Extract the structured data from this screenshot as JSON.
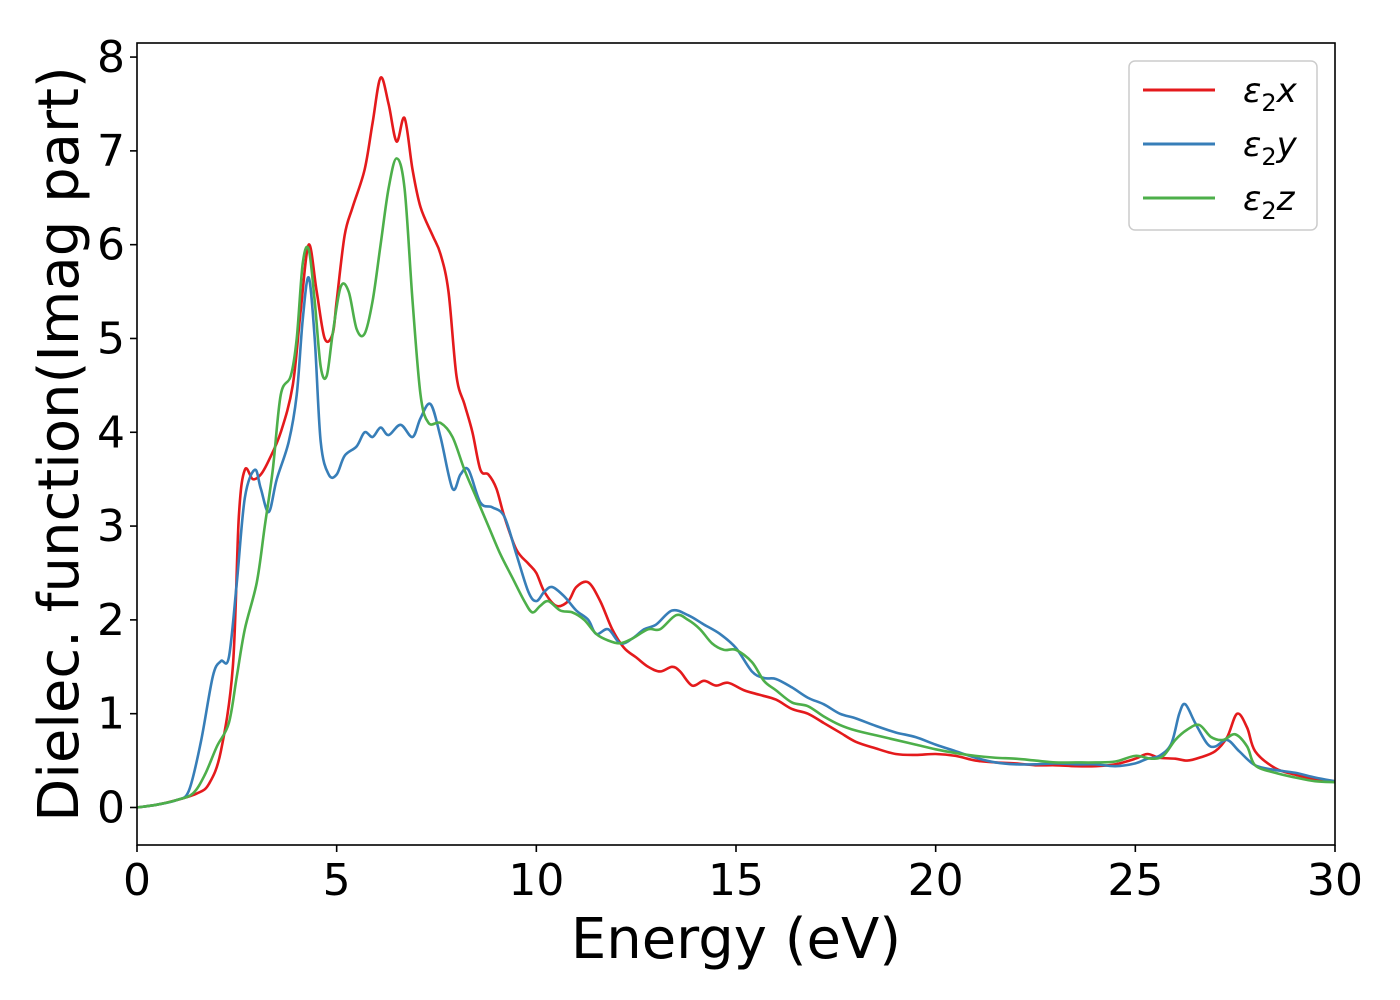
{
  "chart_data": {
    "type": "line",
    "title": "",
    "xlabel": "Energy (eV)",
    "ylabel": "Dielec. function(Imag part)",
    "xlim": [
      0,
      30
    ],
    "ylim": [
      -0.4,
      8.15
    ],
    "xticks": [
      0,
      5,
      10,
      15,
      20,
      25,
      30
    ],
    "yticks": [
      0,
      1,
      2,
      3,
      4,
      5,
      6,
      7,
      8
    ],
    "grid": false,
    "legend_position": "top-right",
    "series": [
      {
        "name": "ε2x",
        "legend_base": "ε",
        "legend_sub": "2",
        "legend_tail": "x",
        "color": "#e41a1c",
        "points": [
          [
            0,
            0
          ],
          [
            0.5,
            0.03
          ],
          [
            1.0,
            0.08
          ],
          [
            1.5,
            0.15
          ],
          [
            1.8,
            0.25
          ],
          [
            2.1,
            0.6
          ],
          [
            2.4,
            1.5
          ],
          [
            2.55,
            3.1
          ],
          [
            2.7,
            3.6
          ],
          [
            2.9,
            3.5
          ],
          [
            3.1,
            3.55
          ],
          [
            3.3,
            3.7
          ],
          [
            3.6,
            4.0
          ],
          [
            3.9,
            4.5
          ],
          [
            4.1,
            5.3
          ],
          [
            4.3,
            6.0
          ],
          [
            4.5,
            5.5
          ],
          [
            4.7,
            5.0
          ],
          [
            4.9,
            5.05
          ],
          [
            5.0,
            5.4
          ],
          [
            5.2,
            6.1
          ],
          [
            5.4,
            6.4
          ],
          [
            5.7,
            6.8
          ],
          [
            5.9,
            7.3
          ],
          [
            6.1,
            7.78
          ],
          [
            6.3,
            7.5
          ],
          [
            6.5,
            7.1
          ],
          [
            6.7,
            7.35
          ],
          [
            6.9,
            6.8
          ],
          [
            7.1,
            6.4
          ],
          [
            7.4,
            6.1
          ],
          [
            7.6,
            5.9
          ],
          [
            7.8,
            5.5
          ],
          [
            8.0,
            4.6
          ],
          [
            8.2,
            4.3
          ],
          [
            8.4,
            4.0
          ],
          [
            8.6,
            3.6
          ],
          [
            8.8,
            3.55
          ],
          [
            9.0,
            3.4
          ],
          [
            9.2,
            3.1
          ],
          [
            9.5,
            2.75
          ],
          [
            9.8,
            2.6
          ],
          [
            10.0,
            2.5
          ],
          [
            10.2,
            2.3
          ],
          [
            10.5,
            2.15
          ],
          [
            10.8,
            2.2
          ],
          [
            11.0,
            2.35
          ],
          [
            11.3,
            2.4
          ],
          [
            11.6,
            2.2
          ],
          [
            11.9,
            1.9
          ],
          [
            12.2,
            1.7
          ],
          [
            12.5,
            1.6
          ],
          [
            12.8,
            1.5
          ],
          [
            13.1,
            1.45
          ],
          [
            13.4,
            1.5
          ],
          [
            13.6,
            1.45
          ],
          [
            13.9,
            1.3
          ],
          [
            14.2,
            1.35
          ],
          [
            14.5,
            1.3
          ],
          [
            14.8,
            1.33
          ],
          [
            15.2,
            1.25
          ],
          [
            15.6,
            1.2
          ],
          [
            16.0,
            1.15
          ],
          [
            16.4,
            1.05
          ],
          [
            16.8,
            1.0
          ],
          [
            17.2,
            0.9
          ],
          [
            17.6,
            0.8
          ],
          [
            18.0,
            0.7
          ],
          [
            18.5,
            0.63
          ],
          [
            19.0,
            0.57
          ],
          [
            19.5,
            0.56
          ],
          [
            20.0,
            0.57
          ],
          [
            20.5,
            0.55
          ],
          [
            21.0,
            0.5
          ],
          [
            21.5,
            0.48
          ],
          [
            22.0,
            0.47
          ],
          [
            22.5,
            0.45
          ],
          [
            23.0,
            0.45
          ],
          [
            23.5,
            0.44
          ],
          [
            24.0,
            0.44
          ],
          [
            24.5,
            0.46
          ],
          [
            25.0,
            0.52
          ],
          [
            25.3,
            0.57
          ],
          [
            25.6,
            0.53
          ],
          [
            26.0,
            0.52
          ],
          [
            26.3,
            0.5
          ],
          [
            26.6,
            0.53
          ],
          [
            27.0,
            0.6
          ],
          [
            27.3,
            0.75
          ],
          [
            27.55,
            1.0
          ],
          [
            27.8,
            0.85
          ],
          [
            28.0,
            0.6
          ],
          [
            28.5,
            0.42
          ],
          [
            29.0,
            0.35
          ],
          [
            29.5,
            0.3
          ],
          [
            30.0,
            0.28
          ]
        ]
      },
      {
        "name": "ε2y",
        "legend_base": "ε",
        "legend_sub": "2",
        "legend_tail": "y",
        "color": "#377eb8",
        "points": [
          [
            0,
            0
          ],
          [
            0.5,
            0.03
          ],
          [
            1.0,
            0.08
          ],
          [
            1.3,
            0.18
          ],
          [
            1.6,
            0.7
          ],
          [
            1.9,
            1.4
          ],
          [
            2.1,
            1.56
          ],
          [
            2.3,
            1.6
          ],
          [
            2.5,
            2.4
          ],
          [
            2.7,
            3.3
          ],
          [
            2.95,
            3.6
          ],
          [
            3.1,
            3.4
          ],
          [
            3.3,
            3.15
          ],
          [
            3.5,
            3.5
          ],
          [
            3.8,
            3.9
          ],
          [
            4.0,
            4.4
          ],
          [
            4.15,
            5.2
          ],
          [
            4.3,
            5.65
          ],
          [
            4.45,
            5.0
          ],
          [
            4.6,
            3.9
          ],
          [
            4.8,
            3.55
          ],
          [
            5.0,
            3.55
          ],
          [
            5.2,
            3.75
          ],
          [
            5.5,
            3.85
          ],
          [
            5.7,
            4.0
          ],
          [
            5.9,
            3.95
          ],
          [
            6.1,
            4.05
          ],
          [
            6.3,
            3.97
          ],
          [
            6.6,
            4.08
          ],
          [
            6.9,
            3.95
          ],
          [
            7.1,
            4.15
          ],
          [
            7.35,
            4.3
          ],
          [
            7.6,
            3.95
          ],
          [
            7.9,
            3.4
          ],
          [
            8.1,
            3.55
          ],
          [
            8.3,
            3.6
          ],
          [
            8.6,
            3.25
          ],
          [
            8.9,
            3.2
          ],
          [
            9.2,
            3.1
          ],
          [
            9.5,
            2.7
          ],
          [
            9.8,
            2.3
          ],
          [
            10.0,
            2.2
          ],
          [
            10.2,
            2.3
          ],
          [
            10.4,
            2.35
          ],
          [
            10.7,
            2.25
          ],
          [
            11.0,
            2.1
          ],
          [
            11.3,
            2.0
          ],
          [
            11.5,
            1.85
          ],
          [
            11.8,
            1.9
          ],
          [
            12.1,
            1.75
          ],
          [
            12.4,
            1.8
          ],
          [
            12.7,
            1.9
          ],
          [
            13.0,
            1.95
          ],
          [
            13.4,
            2.1
          ],
          [
            13.8,
            2.05
          ],
          [
            14.2,
            1.95
          ],
          [
            14.6,
            1.85
          ],
          [
            15.0,
            1.7
          ],
          [
            15.4,
            1.45
          ],
          [
            15.7,
            1.38
          ],
          [
            16.0,
            1.37
          ],
          [
            16.4,
            1.28
          ],
          [
            16.8,
            1.17
          ],
          [
            17.2,
            1.1
          ],
          [
            17.6,
            1.0
          ],
          [
            18.0,
            0.95
          ],
          [
            18.5,
            0.87
          ],
          [
            19.0,
            0.8
          ],
          [
            19.5,
            0.75
          ],
          [
            20.0,
            0.67
          ],
          [
            20.5,
            0.6
          ],
          [
            21.0,
            0.53
          ],
          [
            21.5,
            0.48
          ],
          [
            22.0,
            0.46
          ],
          [
            22.5,
            0.46
          ],
          [
            23.0,
            0.47
          ],
          [
            23.5,
            0.46
          ],
          [
            24.0,
            0.46
          ],
          [
            24.5,
            0.44
          ],
          [
            25.0,
            0.47
          ],
          [
            25.3,
            0.52
          ],
          [
            25.6,
            0.55
          ],
          [
            25.9,
            0.68
          ],
          [
            26.1,
            1.0
          ],
          [
            26.25,
            1.1
          ],
          [
            26.5,
            0.9
          ],
          [
            26.8,
            0.68
          ],
          [
            27.0,
            0.65
          ],
          [
            27.3,
            0.72
          ],
          [
            27.6,
            0.6
          ],
          [
            28.0,
            0.45
          ],
          [
            28.5,
            0.4
          ],
          [
            29.0,
            0.37
          ],
          [
            29.5,
            0.32
          ],
          [
            30.0,
            0.28
          ]
        ]
      },
      {
        "name": "ε2z",
        "legend_base": "ε",
        "legend_sub": "2",
        "legend_tail": "z",
        "color": "#4daf4a",
        "points": [
          [
            0,
            0
          ],
          [
            0.5,
            0.03
          ],
          [
            1.0,
            0.08
          ],
          [
            1.4,
            0.15
          ],
          [
            1.7,
            0.35
          ],
          [
            2.0,
            0.65
          ],
          [
            2.3,
            0.9
          ],
          [
            2.5,
            1.4
          ],
          [
            2.7,
            1.9
          ],
          [
            3.0,
            2.4
          ],
          [
            3.2,
            3.0
          ],
          [
            3.4,
            3.6
          ],
          [
            3.6,
            4.4
          ],
          [
            3.85,
            4.6
          ],
          [
            4.0,
            5.0
          ],
          [
            4.15,
            5.8
          ],
          [
            4.3,
            5.95
          ],
          [
            4.45,
            5.4
          ],
          [
            4.6,
            4.7
          ],
          [
            4.75,
            4.6
          ],
          [
            4.9,
            5.05
          ],
          [
            5.1,
            5.55
          ],
          [
            5.3,
            5.5
          ],
          [
            5.5,
            5.1
          ],
          [
            5.7,
            5.05
          ],
          [
            5.9,
            5.4
          ],
          [
            6.1,
            6.0
          ],
          [
            6.3,
            6.6
          ],
          [
            6.5,
            6.92
          ],
          [
            6.7,
            6.6
          ],
          [
            6.9,
            5.4
          ],
          [
            7.1,
            4.4
          ],
          [
            7.3,
            4.1
          ],
          [
            7.6,
            4.1
          ],
          [
            7.9,
            3.95
          ],
          [
            8.2,
            3.6
          ],
          [
            8.5,
            3.3
          ],
          [
            8.8,
            3.0
          ],
          [
            9.1,
            2.7
          ],
          [
            9.4,
            2.45
          ],
          [
            9.7,
            2.2
          ],
          [
            9.9,
            2.08
          ],
          [
            10.1,
            2.15
          ],
          [
            10.3,
            2.2
          ],
          [
            10.6,
            2.1
          ],
          [
            10.9,
            2.08
          ],
          [
            11.2,
            2.0
          ],
          [
            11.5,
            1.85
          ],
          [
            11.8,
            1.78
          ],
          [
            12.1,
            1.75
          ],
          [
            12.4,
            1.8
          ],
          [
            12.8,
            1.9
          ],
          [
            13.1,
            1.9
          ],
          [
            13.5,
            2.05
          ],
          [
            13.8,
            2.0
          ],
          [
            14.1,
            1.9
          ],
          [
            14.4,
            1.75
          ],
          [
            14.7,
            1.68
          ],
          [
            15.0,
            1.68
          ],
          [
            15.4,
            1.55
          ],
          [
            15.7,
            1.35
          ],
          [
            16.0,
            1.25
          ],
          [
            16.4,
            1.12
          ],
          [
            16.8,
            1.08
          ],
          [
            17.2,
            0.97
          ],
          [
            17.6,
            0.88
          ],
          [
            18.0,
            0.82
          ],
          [
            18.5,
            0.77
          ],
          [
            19.0,
            0.72
          ],
          [
            19.5,
            0.67
          ],
          [
            20.0,
            0.62
          ],
          [
            20.5,
            0.58
          ],
          [
            21.0,
            0.55
          ],
          [
            21.5,
            0.53
          ],
          [
            22.0,
            0.52
          ],
          [
            22.5,
            0.5
          ],
          [
            23.0,
            0.48
          ],
          [
            23.5,
            0.48
          ],
          [
            24.0,
            0.48
          ],
          [
            24.5,
            0.49
          ],
          [
            25.0,
            0.55
          ],
          [
            25.4,
            0.52
          ],
          [
            25.7,
            0.55
          ],
          [
            26.0,
            0.72
          ],
          [
            26.3,
            0.83
          ],
          [
            26.6,
            0.88
          ],
          [
            26.9,
            0.75
          ],
          [
            27.2,
            0.72
          ],
          [
            27.5,
            0.78
          ],
          [
            27.8,
            0.65
          ],
          [
            28.0,
            0.45
          ],
          [
            28.5,
            0.37
          ],
          [
            29.0,
            0.32
          ],
          [
            29.5,
            0.28
          ],
          [
            30.0,
            0.27
          ]
        ]
      }
    ]
  }
}
